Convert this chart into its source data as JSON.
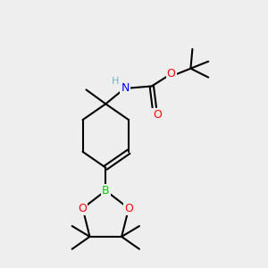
{
  "bg_color": "#eeeeee",
  "atom_colors": {
    "H": "#6cb4c8",
    "N": "#0000ff",
    "O": "#ff0000",
    "B": "#00cc00"
  },
  "figsize": [
    3.0,
    3.0
  ],
  "dpi": 100
}
